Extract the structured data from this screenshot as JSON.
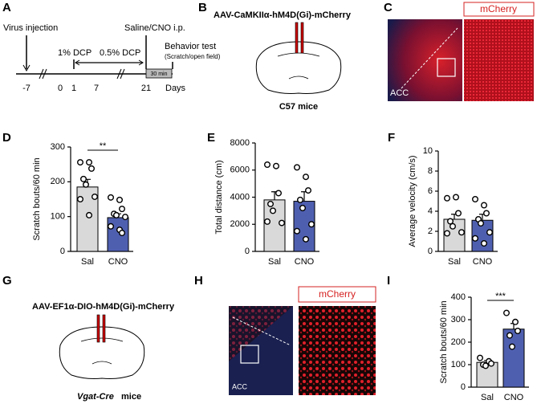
{
  "panels": {
    "a": {
      "letter": "A",
      "virus": "Virus injection",
      "dcp1": "1% DCP",
      "dcp05": "0.5% DCP",
      "ip": "Saline/CNO i.p.",
      "behavior": "Behavior test",
      "behavior_sub": "(Scratch/open field)",
      "window": "30 min",
      "axis_label": "Days",
      "days": [
        "-7",
        "0",
        "1",
        "7",
        "21"
      ]
    },
    "b": {
      "letter": "B",
      "virus": "AAV-CaMKIIα-hM4D(Gi)-mCherry",
      "mice": "C57 mice"
    },
    "c": {
      "letter": "C",
      "region": "ACC",
      "channel": "mCherry"
    },
    "g": {
      "letter": "G",
      "virus": "AAV-EF1α-DIO-hM4D(Gi)-mCherry",
      "mouse_line": "Vgat-Cre",
      "mice": "mice"
    },
    "h": {
      "letter": "H",
      "region": "ACC",
      "channel": "mCherry"
    }
  },
  "chart_data": [
    {
      "type": "bar",
      "label": "D",
      "ylabel": "Scratch bouts/60 min",
      "categories": [
        "Sal",
        "CNO"
      ],
      "colors": [
        "#d9d9d9",
        "#4f5fb0"
      ],
      "values": [
        185,
        97
      ],
      "errors": [
        22,
        11
      ],
      "points": [
        [
          256,
          256,
          238,
          208,
          192,
          157,
          150,
          104
        ],
        [
          155,
          148,
          122,
          108,
          104,
          99,
          72,
          62,
          53
        ]
      ],
      "ylim": [
        0,
        300
      ],
      "yticks": [
        0,
        100,
        200,
        300
      ],
      "significance": "**"
    },
    {
      "type": "bar",
      "label": "E",
      "ylabel": "Total distance (cm)",
      "categories": [
        "Sal",
        "CNO"
      ],
      "colors": [
        "#d9d9d9",
        "#4f5fb0"
      ],
      "values": [
        3800,
        3700
      ],
      "errors": [
        600,
        700
      ],
      "points": [
        [
          6400,
          6300,
          4300,
          3500,
          3000,
          2100,
          2200
        ],
        [
          6200,
          5500,
          4500,
          3800,
          3200,
          2000,
          1500,
          900
        ]
      ],
      "ylim": [
        0,
        8000
      ],
      "yticks": [
        0,
        2000,
        4000,
        6000,
        8000
      ]
    },
    {
      "type": "bar",
      "label": "F",
      "ylabel": "Average velocity (cm/s)",
      "categories": [
        "Sal",
        "CNO"
      ],
      "colors": [
        "#d9d9d9",
        "#4f5fb0"
      ],
      "values": [
        3.2,
        3.1
      ],
      "errors": [
        0.5,
        0.6
      ],
      "points": [
        [
          5.3,
          5.4,
          3.8,
          3.0,
          2.5,
          1.9,
          1.8
        ],
        [
          5.2,
          4.6,
          3.8,
          3.2,
          2.8,
          1.9,
          1.3,
          0.8
        ]
      ],
      "ylim": [
        0,
        10
      ],
      "yticks": [
        0,
        2,
        4,
        6,
        8,
        10
      ]
    },
    {
      "type": "bar",
      "label": "I",
      "ylabel": "Scratch bouts/60 min",
      "categories": [
        "Sal",
        "CNO"
      ],
      "colors": [
        "#d9d9d9",
        "#4f5fb0"
      ],
      "values": [
        110,
        258
      ],
      "errors": [
        8,
        25
      ],
      "points": [
        [
          130,
          115,
          105,
          100,
          95
        ],
        [
          330,
          290,
          250,
          230,
          180
        ]
      ],
      "ylim": [
        0,
        400
      ],
      "yticks": [
        0,
        100,
        200,
        300,
        400
      ],
      "significance": "***"
    }
  ]
}
